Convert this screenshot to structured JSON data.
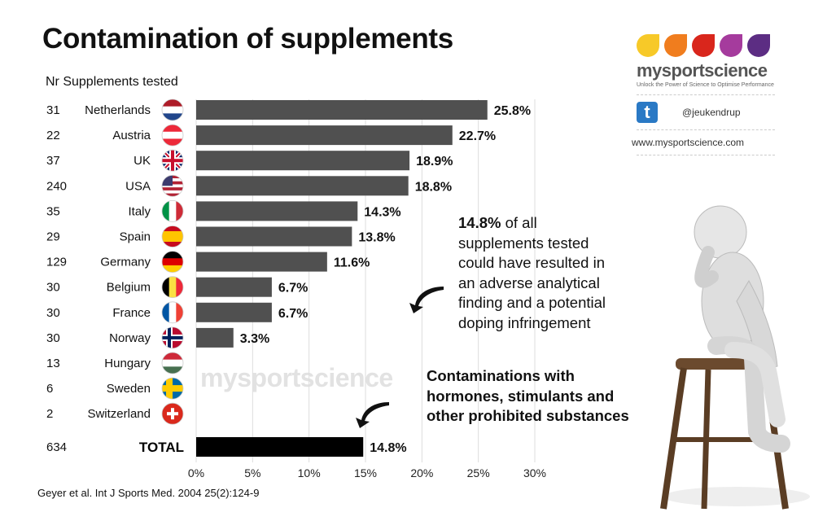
{
  "title": "Contamination of supplements",
  "subtitle": "Nr Supplements tested",
  "citation": "Geyer et al. Int J Sports Med. 2004 25(2):124-9",
  "watermark": "mysportscience",
  "logo": {
    "brand": "mysportscience",
    "tagline": "Unlock the Power of Science to Optimise Performance",
    "drop_colors": [
      "#f7c928",
      "#f07d1e",
      "#d9261c",
      "#a53b9d",
      "#5c2d83"
    ],
    "twitter_icon": "twitter-icon",
    "twitter_handle": "@jeukendrup",
    "website": "www.mysportscience.com"
  },
  "notes": {
    "main_bold": "14.8%",
    "main_rest": " of all supplements tested could have resulted in an adverse analytical finding and a potential doping infringement",
    "secondary": "Contaminations with hormones, stimulants and other prohibited substances"
  },
  "chart_data": {
    "type": "bar",
    "orientation": "horizontal",
    "xlim": [
      0,
      30
    ],
    "x_ticks": [
      "0%",
      "5%",
      "10%",
      "15%",
      "20%",
      "25%",
      "30%"
    ],
    "grid": true,
    "bar_color": "#505050",
    "total_bar_color": "#000000",
    "rows": [
      {
        "country": "Netherlands",
        "n": "31",
        "value": 25.8,
        "label": "25.8%",
        "flag": {
          "type": "h",
          "colors": [
            "#ae1c28",
            "#ffffff",
            "#21468b"
          ]
        }
      },
      {
        "country": "Austria",
        "n": "22",
        "value": 22.7,
        "label": "22.7%",
        "flag": {
          "type": "h",
          "colors": [
            "#ed2939",
            "#ffffff",
            "#ed2939"
          ]
        }
      },
      {
        "country": "UK",
        "n": "37",
        "value": 18.9,
        "label": "18.9%",
        "flag": {
          "type": "uk",
          "colors": [
            "#012169",
            "#ffffff",
            "#c8102e"
          ]
        }
      },
      {
        "country": "USA",
        "n": "240",
        "value": 18.8,
        "label": "18.8%",
        "flag": {
          "type": "us",
          "colors": [
            "#b22234",
            "#ffffff",
            "#3c3b6e"
          ]
        }
      },
      {
        "country": "Italy",
        "n": "35",
        "value": 14.3,
        "label": "14.3%",
        "flag": {
          "type": "v",
          "colors": [
            "#009246",
            "#ffffff",
            "#ce2b37"
          ]
        }
      },
      {
        "country": "Spain",
        "n": "29",
        "value": 13.8,
        "label": "13.8%",
        "flag": {
          "type": "es",
          "colors": [
            "#c60b1e",
            "#ffc400",
            "#c60b1e"
          ]
        }
      },
      {
        "country": "Germany",
        "n": "129",
        "value": 11.6,
        "label": "11.6%",
        "flag": {
          "type": "h",
          "colors": [
            "#000000",
            "#dd0000",
            "#ffce00"
          ]
        }
      },
      {
        "country": "Belgium",
        "n": "30",
        "value": 6.7,
        "label": "6.7%",
        "flag": {
          "type": "v",
          "colors": [
            "#000000",
            "#fae042",
            "#ed2939"
          ]
        }
      },
      {
        "country": "France",
        "n": "30",
        "value": 6.7,
        "label": "6.7%",
        "flag": {
          "type": "v",
          "colors": [
            "#0055a4",
            "#ffffff",
            "#ef4135"
          ]
        }
      },
      {
        "country": "Norway",
        "n": "30",
        "value": 3.3,
        "label": "3.3%",
        "flag": {
          "type": "nordic",
          "colors": [
            "#ba0c2f",
            "#ffffff",
            "#00205b"
          ]
        }
      },
      {
        "country": "Hungary",
        "n": "13",
        "value": 0,
        "label": "",
        "flag": {
          "type": "h",
          "colors": [
            "#ce2939",
            "#ffffff",
            "#477050"
          ]
        }
      },
      {
        "country": "Sweden",
        "n": "6",
        "value": 0,
        "label": "",
        "flag": {
          "type": "nordic",
          "colors": [
            "#006aa7",
            "#fecc00",
            "#fecc00"
          ]
        }
      },
      {
        "country": "Switzerland",
        "n": "2",
        "value": 0,
        "label": "",
        "flag": {
          "type": "ch",
          "colors": [
            "#da291c",
            "#ffffff"
          ]
        }
      }
    ],
    "total": {
      "country": "TOTAL",
      "n": "634",
      "value": 14.8,
      "label": "14.8%"
    }
  }
}
